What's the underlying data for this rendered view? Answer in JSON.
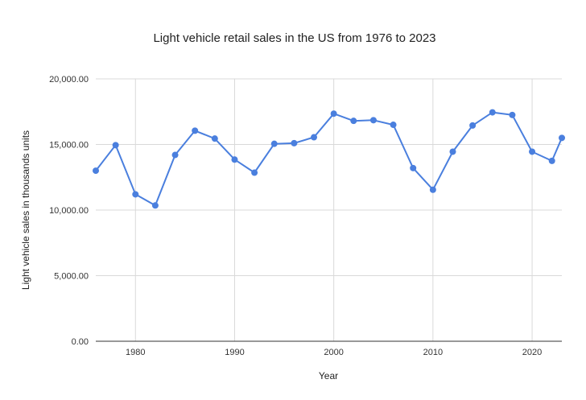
{
  "chart_data": {
    "type": "line",
    "title": "Light vehicle retail sales in the US from 1976 to 2023",
    "xlabel": "Year",
    "ylabel": "Light vehicle sales in thousands units",
    "xlim": [
      1976,
      2023
    ],
    "ylim": [
      0,
      20000
    ],
    "x_ticks": [
      {
        "value": 1980,
        "label": "1980"
      },
      {
        "value": 1990,
        "label": "1990"
      },
      {
        "value": 2000,
        "label": "2000"
      },
      {
        "value": 2010,
        "label": "2010"
      },
      {
        "value": 2020,
        "label": "2020"
      }
    ],
    "y_ticks": [
      {
        "value": 0,
        "label": "0.00"
      },
      {
        "value": 5000,
        "label": "5,000.00"
      },
      {
        "value": 10000,
        "label": "10,000.00"
      },
      {
        "value": 15000,
        "label": "15,000.00"
      },
      {
        "value": 20000,
        "label": "20,000.00"
      }
    ],
    "grid": true,
    "legend": "none",
    "series": [
      {
        "color": "#4a7fde",
        "x": [
          1976,
          1978,
          1980,
          1982,
          1984,
          1986,
          1988,
          1990,
          1992,
          1994,
          1996,
          1998,
          2000,
          2002,
          2004,
          2006,
          2008,
          2010,
          2012,
          2014,
          2016,
          2018,
          2020,
          2022,
          2023
        ],
        "values": [
          13000,
          14950,
          11200,
          10350,
          14200,
          16050,
          15450,
          13850,
          12850,
          15050,
          15100,
          15550,
          17350,
          16800,
          16850,
          16500,
          13200,
          11550,
          14450,
          16450,
          17450,
          17250,
          14450,
          13750,
          15500
        ]
      }
    ]
  }
}
